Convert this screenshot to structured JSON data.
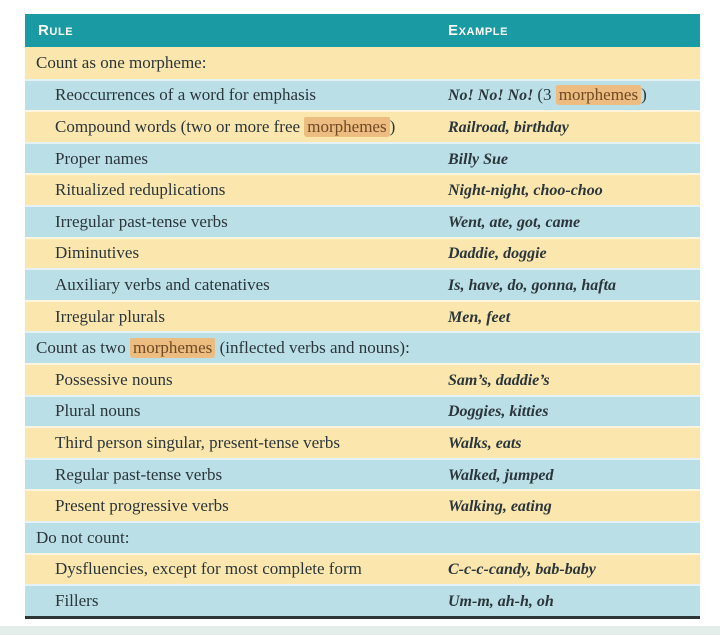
{
  "colors": {
    "header_bg": "#1A9AA2",
    "header_text": "#FFFFFF",
    "row_cream": "#FBE7AD",
    "row_blue": "#BBDFE6",
    "text": "#2A363B",
    "highlight_bg": "#ECBC80",
    "highlight_text": "#6E4A24",
    "bottom_border": "#2E3537",
    "footer_strip": "#E3EDE9"
  },
  "table": {
    "header": {
      "rule_label": "Rule",
      "example_label": "Example"
    },
    "rows": [
      {
        "kind": "section",
        "rule": [
          {
            "t": "Count as one morpheme:"
          }
        ],
        "example": []
      },
      {
        "kind": "item",
        "rule": [
          {
            "t": "Reoccurrences of a word for emphasis"
          }
        ],
        "example": [
          {
            "t": "No! No! No! ",
            "bi": true
          },
          {
            "t": "(3 "
          },
          {
            "t": "morphemes",
            "hl": true
          },
          {
            "t": ")"
          }
        ]
      },
      {
        "kind": "item",
        "rule": [
          {
            "t": "Compound words (two or more free "
          },
          {
            "t": "morphemes",
            "hl": true
          },
          {
            "t": ")"
          }
        ],
        "example": [
          {
            "t": "Railroad, birthday",
            "bi": true
          }
        ]
      },
      {
        "kind": "item",
        "rule": [
          {
            "t": "Proper names"
          }
        ],
        "example": [
          {
            "t": "Billy Sue",
            "bi": true
          }
        ]
      },
      {
        "kind": "item",
        "rule": [
          {
            "t": "Ritualized reduplications"
          }
        ],
        "example": [
          {
            "t": "Night-night, choo-choo",
            "bi": true
          }
        ]
      },
      {
        "kind": "item",
        "rule": [
          {
            "t": "Irregular past-tense verbs"
          }
        ],
        "example": [
          {
            "t": "Went, ate, got, came",
            "bi": true
          }
        ]
      },
      {
        "kind": "item",
        "rule": [
          {
            "t": "Diminutives"
          }
        ],
        "example": [
          {
            "t": "Daddie, doggie",
            "bi": true
          }
        ]
      },
      {
        "kind": "item",
        "rule": [
          {
            "t": "Auxiliary verbs and catenatives"
          }
        ],
        "example": [
          {
            "t": "Is, have, do, gonna, hafta",
            "bi": true
          }
        ]
      },
      {
        "kind": "item",
        "rule": [
          {
            "t": "Irregular plurals"
          }
        ],
        "example": [
          {
            "t": "Men, feet",
            "bi": true
          }
        ]
      },
      {
        "kind": "section",
        "rule": [
          {
            "t": "Count as two "
          },
          {
            "t": "morphemes",
            "hl": true
          },
          {
            "t": " (inflected verbs and nouns):"
          }
        ],
        "example": []
      },
      {
        "kind": "item",
        "rule": [
          {
            "t": "Possessive nouns"
          }
        ],
        "example": [
          {
            "t": "Sam’s, daddie’s",
            "bi": true
          }
        ]
      },
      {
        "kind": "item",
        "rule": [
          {
            "t": "Plural nouns"
          }
        ],
        "example": [
          {
            "t": "Doggies, kitties",
            "bi": true
          }
        ]
      },
      {
        "kind": "item",
        "rule": [
          {
            "t": "Third person singular, present-tense verbs"
          }
        ],
        "example": [
          {
            "t": "Walks, eats",
            "bi": true
          }
        ]
      },
      {
        "kind": "item",
        "rule": [
          {
            "t": "Regular past-tense verbs"
          }
        ],
        "example": [
          {
            "t": "Walked, jumped",
            "bi": true
          }
        ]
      },
      {
        "kind": "item",
        "rule": [
          {
            "t": "Present progressive verbs"
          }
        ],
        "example": [
          {
            "t": "Walking, eating",
            "bi": true
          }
        ]
      },
      {
        "kind": "section",
        "rule": [
          {
            "t": "Do not count:"
          }
        ],
        "example": []
      },
      {
        "kind": "item",
        "rule": [
          {
            "t": "Dysfluencies, except for most complete form"
          }
        ],
        "example": [
          {
            "t": "C-c-c-candy, bab-baby",
            "bi": true
          }
        ]
      },
      {
        "kind": "item",
        "rule": [
          {
            "t": "Fillers"
          }
        ],
        "example": [
          {
            "t": "Um-m, ah-h, oh",
            "bi": true
          }
        ]
      }
    ]
  }
}
